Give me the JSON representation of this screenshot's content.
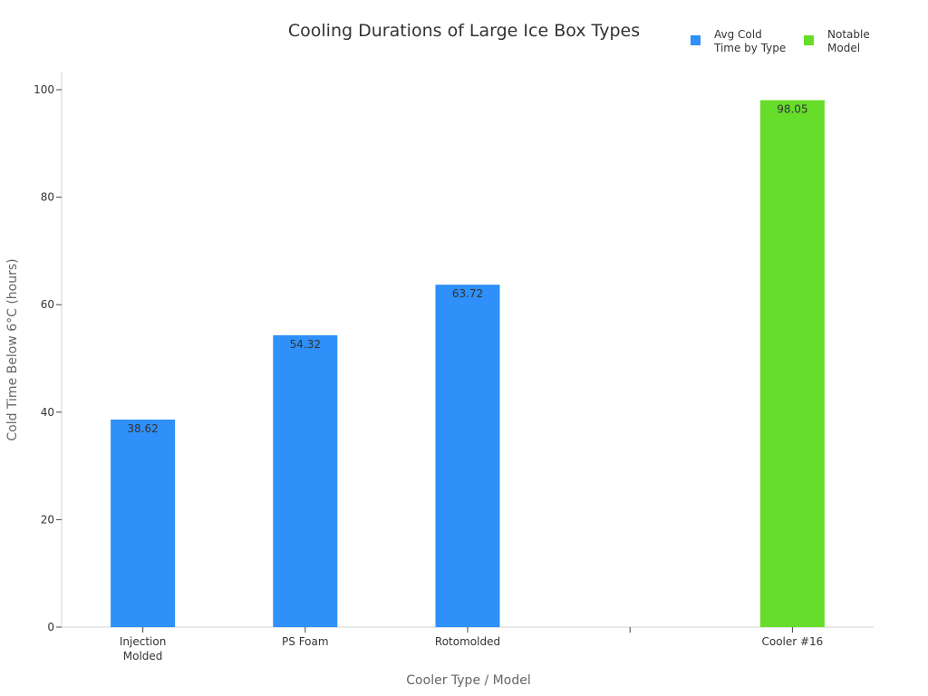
{
  "chart_data": {
    "type": "bar",
    "title": "Cooling Durations of Large Ice Box Types",
    "xlabel": "Cooler Type / Model",
    "ylabel": "Cold Time Below 6°C (hours)",
    "categories": [
      [
        "Injection",
        "Molded"
      ],
      [
        "PS Foam"
      ],
      [
        "Rotomolded"
      ],
      [
        ""
      ],
      [
        "Cooler #16"
      ]
    ],
    "ylim": [
      0,
      103
    ],
    "yticks": [
      0,
      20,
      40,
      60,
      80,
      100
    ],
    "grid": false,
    "legend_position": "top-right",
    "series": [
      {
        "name": [
          "Avg Cold",
          "Time by Type"
        ],
        "color": "#2e90f8",
        "values": [
          38.62,
          54.32,
          63.72,
          null,
          null
        ],
        "labels": [
          "38.62",
          "54.32",
          "63.72",
          null,
          null
        ]
      },
      {
        "name": [
          "Notable",
          "Model"
        ],
        "color": "#66dd2a",
        "values": [
          null,
          null,
          null,
          null,
          98.05
        ],
        "labels": [
          null,
          null,
          null,
          null,
          "98.05"
        ]
      }
    ]
  }
}
